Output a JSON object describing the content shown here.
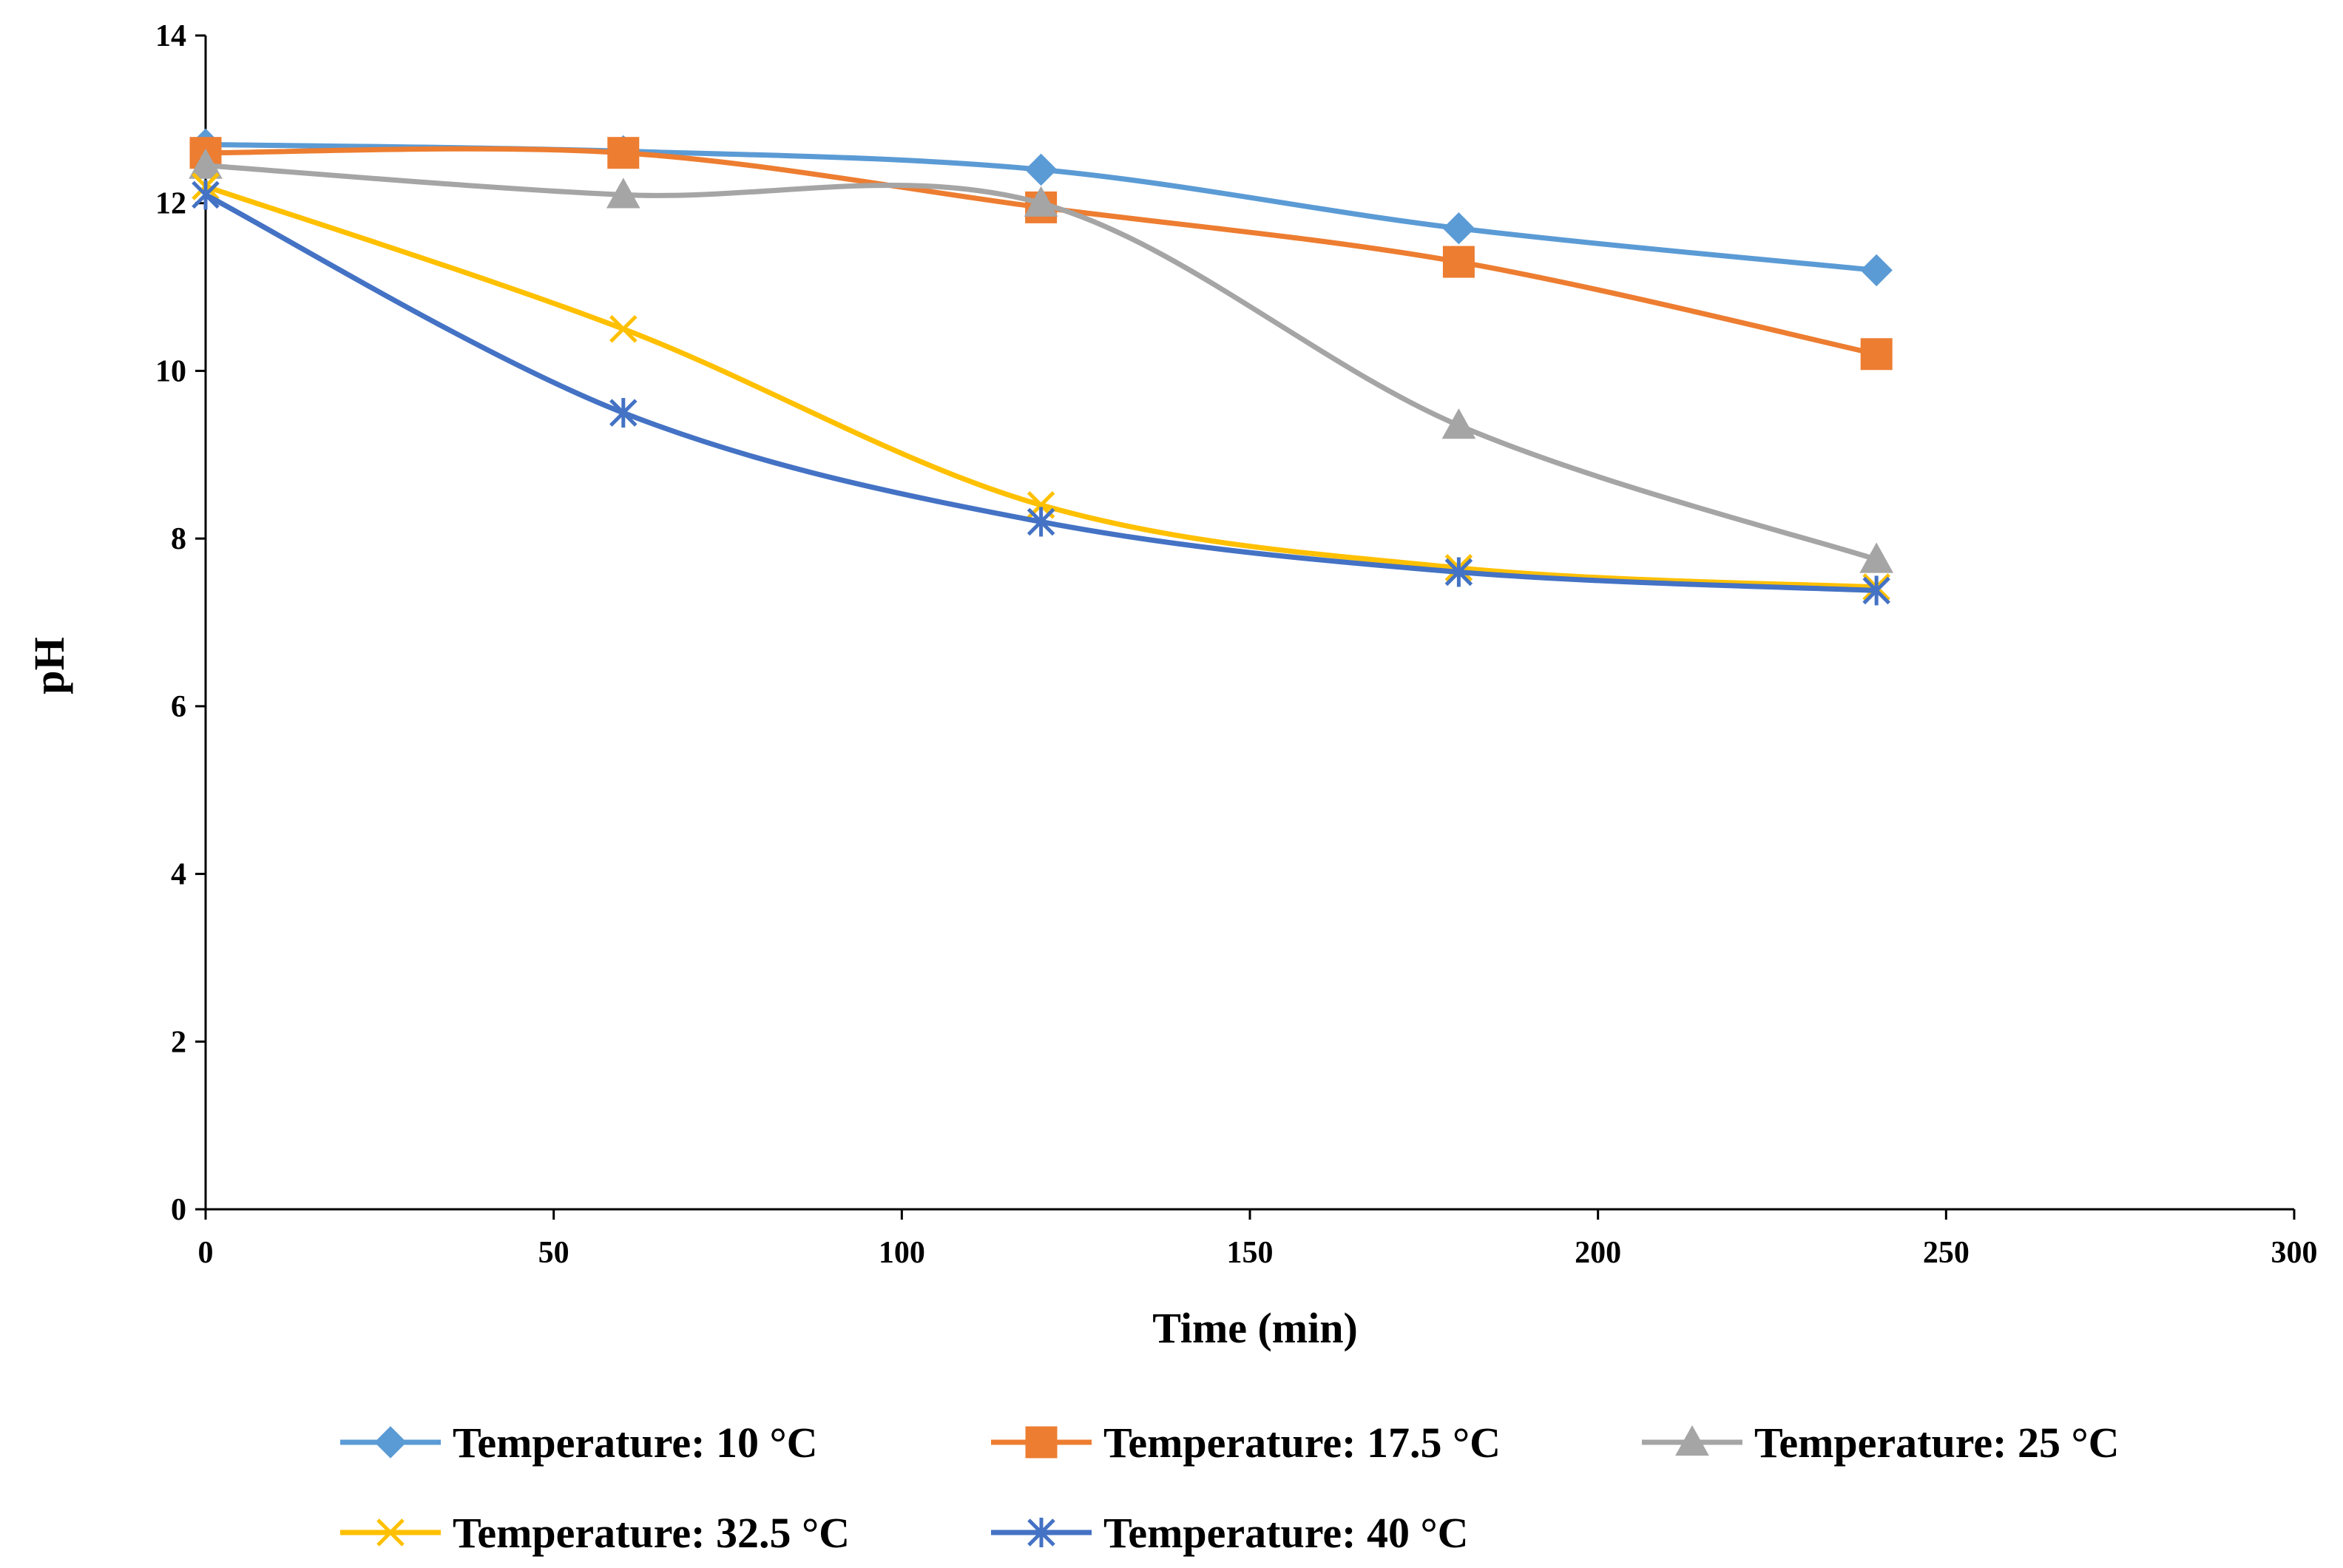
{
  "chart_data": {
    "type": "line",
    "title": "",
    "xlabel": "Time (min)",
    "ylabel": "pH",
    "xlim": [
      0,
      300
    ],
    "ylim": [
      0,
      14
    ],
    "xticks": [
      0,
      50,
      100,
      150,
      200,
      250,
      300
    ],
    "yticks": [
      0,
      2,
      4,
      6,
      8,
      10,
      12,
      14
    ],
    "grid": false,
    "legend_position": "bottom",
    "x": [
      0,
      60,
      120,
      180,
      240
    ],
    "series": [
      {
        "name": "Temperature: 10 °C",
        "values": [
          12.7,
          12.62,
          12.4,
          11.7,
          11.2
        ],
        "color": "#5B9BD5",
        "marker": "diamond"
      },
      {
        "name": "Temperature: 17.5 °C",
        "values": [
          12.6,
          12.6,
          11.95,
          11.3,
          10.2
        ],
        "color": "#ED7D31",
        "marker": "square"
      },
      {
        "name": "Temperature: 25 °C",
        "values": [
          12.45,
          12.1,
          12.0,
          9.35,
          7.75
        ],
        "color": "#A5A5A5",
        "marker": "triangle"
      },
      {
        "name": "Temperature: 32.5 °C",
        "values": [
          12.2,
          10.5,
          8.4,
          7.65,
          7.42
        ],
        "color": "#FFC000",
        "marker": "x"
      },
      {
        "name": "Temperature: 40 °C",
        "values": [
          12.1,
          9.5,
          8.2,
          7.6,
          7.38
        ],
        "color": "#4472C4",
        "marker": "star"
      }
    ]
  }
}
